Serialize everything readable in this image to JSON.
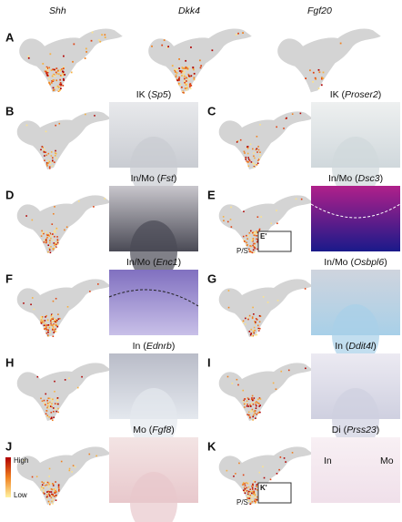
{
  "panel_a": {
    "letter": "A",
    "genes": [
      "Shh",
      "Dkk4",
      "Fgf20"
    ]
  },
  "panels": [
    {
      "letter": "B",
      "title": [
        "IK (",
        "Sp5",
        ")"
      ]
    },
    {
      "letter": "C",
      "title": [
        "IK (",
        "Proser2",
        ")"
      ]
    },
    {
      "letter": "D",
      "title": [
        "In/Mo (",
        "Fst",
        ")"
      ]
    },
    {
      "letter": "E",
      "title": [
        "In/Mo (",
        "Dsc3",
        ")"
      ]
    },
    {
      "letter": "F",
      "title": [
        "In/Mo (",
        "Enc1",
        ")"
      ]
    },
    {
      "letter": "G",
      "title": [
        "In/Mo (",
        "Osbpl6",
        ")"
      ]
    },
    {
      "letter": "H",
      "title": [
        "In (",
        "Ednrb",
        ")"
      ]
    },
    {
      "letter": "I",
      "title": [
        "In (",
        "Ddit4l",
        ")"
      ]
    },
    {
      "letter": "J",
      "title": [
        "Mo (",
        "Fgf8",
        ")"
      ]
    },
    {
      "letter": "K",
      "title": [
        "Di (",
        "Prss23",
        ")"
      ]
    }
  ],
  "legend": {
    "high": "High",
    "low": "Low"
  },
  "annotations": {
    "e_inset": "E'",
    "e_axis": "P/S",
    "k_inset": "K'",
    "k_axis": "P/S",
    "k_in": "In",
    "k_mo": "Mo"
  }
}
